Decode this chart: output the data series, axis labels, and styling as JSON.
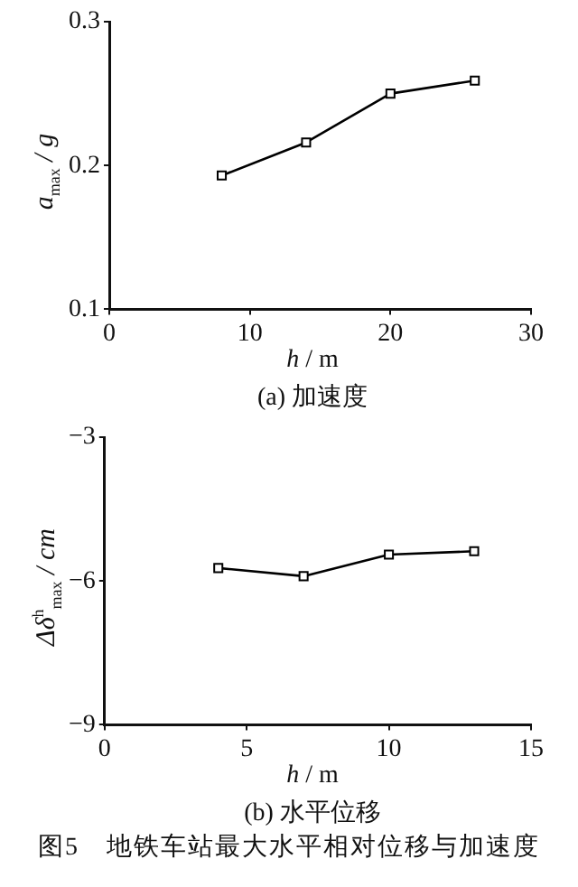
{
  "chart_data": [
    {
      "type": "line",
      "title": "(a) 加速度",
      "xlabel": "h / m",
      "ylabel": "a$_{max}$ / g",
      "x": [
        8,
        14,
        20,
        26
      ],
      "series": [
        {
          "color": "#000000",
          "values": [
            0.193,
            0.216,
            0.25,
            0.259
          ]
        }
      ],
      "xlim": [
        0,
        30
      ],
      "xticks": [
        0,
        10,
        20,
        30
      ],
      "ylim": [
        0.1,
        0.3
      ],
      "yticks": [
        0.1,
        0.2,
        0.3
      ],
      "grid": false,
      "legend": false,
      "marker": "square",
      "line_style": "solid"
    },
    {
      "type": "line",
      "title": "(b) 水平位移",
      "xlabel": "h / m",
      "ylabel": "Δδ$^{h}$$_{max}$ / cm",
      "x": [
        4,
        7,
        10,
        13
      ],
      "series": [
        {
          "color": "#000000",
          "values": [
            -5.73,
            -5.9,
            -5.45,
            -5.38
          ]
        }
      ],
      "xlim": [
        0,
        15
      ],
      "xticks": [
        0,
        5,
        10,
        15
      ],
      "ylim": [
        -9,
        -3
      ],
      "yticks": [
        -3,
        -6,
        -9
      ],
      "grid": false,
      "legend": false,
      "marker": "square",
      "line_style": "solid",
      "annotations": [
        "图5　地铁车站最大水平相对位移与加速度"
      ]
    }
  ]
}
